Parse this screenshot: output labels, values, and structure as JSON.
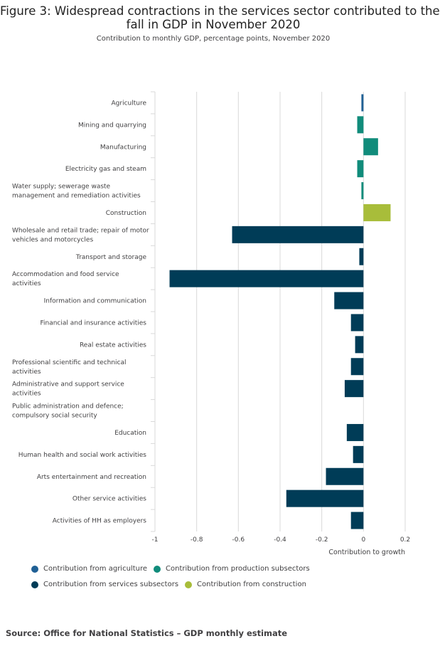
{
  "title_line1": "Figure 3: Widespread contractions in the services sector contributed to the",
  "title_line2": "fall in GDP in November 2020",
  "subtitle": "Contribution to monthly GDP, percentage points, November 2020",
  "source": "Source: Office for National Statistics – GDP monthly estimate",
  "colors": {
    "agriculture": "#206095",
    "production": "#118c7b",
    "services": "#003c57",
    "construction": "#a8bd3a",
    "grid": "#d9d9d9"
  },
  "legend": [
    {
      "label": "Contribution from agriculture",
      "color_key": "agriculture"
    },
    {
      "label": "Contribution from production subsectors",
      "color_key": "production"
    },
    {
      "label": "Contribution from services subsectors",
      "color_key": "services"
    },
    {
      "label": "Contribution from construction",
      "color_key": "construction"
    }
  ],
  "chart_data": {
    "type": "bar",
    "orientation": "horizontal",
    "title": "Figure 3: Widespread contractions in the services sector contributed to the fall in GDP in November 2020",
    "subtitle": "Contribution to monthly GDP, percentage points, November 2020",
    "xlabel": "Contribution to growth",
    "ylabel": "",
    "xlim": [
      -1,
      0.2
    ],
    "xticks": [
      -1,
      -0.8,
      -0.6,
      -0.4,
      -0.2,
      0,
      0.2
    ],
    "xtick_labels": [
      "-1",
      "-0.8",
      "-0.6",
      "-0.4",
      "-0.2",
      "0",
      "0.2"
    ],
    "grid": true,
    "legend_position": "bottom",
    "categories": [
      {
        "label": [
          "Agriculture"
        ],
        "value": -0.01,
        "group": "agriculture"
      },
      {
        "label": [
          "Mining and quarrying"
        ],
        "value": -0.03,
        "group": "production"
      },
      {
        "label": [
          "Manufacturing"
        ],
        "value": 0.07,
        "group": "production"
      },
      {
        "label": [
          "Electricity gas and steam"
        ],
        "value": -0.03,
        "group": "production"
      },
      {
        "label": [
          "Water supply; sewerage waste",
          "management and remediation activities"
        ],
        "value": -0.01,
        "group": "production"
      },
      {
        "label": [
          "Construction"
        ],
        "value": 0.13,
        "group": "construction"
      },
      {
        "label": [
          "Wholesale and retail trade; repair of motor",
          "vehicles and motorcycles"
        ],
        "value": -0.63,
        "group": "services"
      },
      {
        "label": [
          "Transport and storage"
        ],
        "value": -0.02,
        "group": "services"
      },
      {
        "label": [
          "Accommodation and food service",
          "activities"
        ],
        "value": -0.93,
        "group": "services"
      },
      {
        "label": [
          "Information and communication"
        ],
        "value": -0.14,
        "group": "services"
      },
      {
        "label": [
          "Financial and insurance activities"
        ],
        "value": -0.06,
        "group": "services"
      },
      {
        "label": [
          "Real estate activities"
        ],
        "value": -0.04,
        "group": "services"
      },
      {
        "label": [
          "Professional scientific and technical",
          "activities"
        ],
        "value": -0.06,
        "group": "services"
      },
      {
        "label": [
          "Administrative and support service",
          "activities"
        ],
        "value": -0.09,
        "group": "services"
      },
      {
        "label": [
          "Public administration and defence;",
          "compulsory social security"
        ],
        "value": 0.0,
        "group": "services"
      },
      {
        "label": [
          "Education"
        ],
        "value": -0.08,
        "group": "services"
      },
      {
        "label": [
          "Human health and social work activities"
        ],
        "value": -0.05,
        "group": "services"
      },
      {
        "label": [
          "Arts entertainment and recreation"
        ],
        "value": -0.18,
        "group": "services"
      },
      {
        "label": [
          "Other service activities"
        ],
        "value": -0.37,
        "group": "services"
      },
      {
        "label": [
          "Activities of HH as employers"
        ],
        "value": -0.06,
        "group": "services"
      }
    ]
  }
}
